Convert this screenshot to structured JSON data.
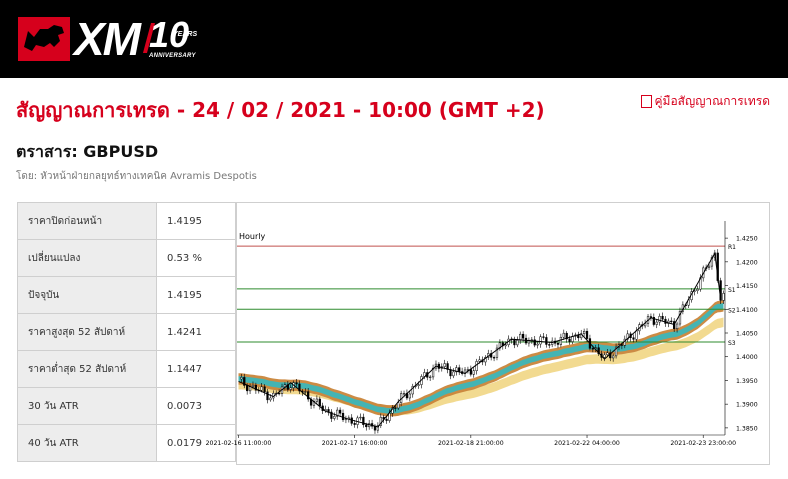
{
  "brand": {
    "logo_text": "XM",
    "anniversary_number": "10",
    "anniversary_years": "YEARS",
    "anniversary_label": "ANNIVERSARY"
  },
  "page_title": "สัญญาณการเทรด - 24 / 02 / 2021 - 10:00 (GMT +2)",
  "guide_link": "คู่มือสัญญาณการเทรด",
  "instrument": "ตราสาร: GBPUSD",
  "author": "โดย: หัวหน้าฝ่ายกลยุทธ์ทางเทคนิค Avramis Despotis",
  "table": [
    {
      "label": "ราคาปิดก่อนหน้า",
      "value": "1.4195"
    },
    {
      "label": "เปลี่ยนแปลง",
      "value": "0.53 %"
    },
    {
      "label": "ปัจจุบัน",
      "value": "1.4195"
    },
    {
      "label": "ราคาสูงสุด 52 สัปดาห์",
      "value": "1.4241"
    },
    {
      "label": "ราคาต่ำสุด 52 สัปดาห์",
      "value": "1.1447"
    },
    {
      "label": "30 วัน ATR",
      "value": "0.0073"
    },
    {
      "label": "40 วัน ATR",
      "value": "0.0179"
    }
  ],
  "chart_data": {
    "type": "line",
    "title": "Hourly",
    "x_tick_labels": [
      "2021-02-16 11:00:00",
      "2021-02-17 16:00:00",
      "2021-02-18 21:00:00",
      "2021-02-22 04:00:00",
      "2021-02-23 23:00:00"
    ],
    "y_tick_labels": [
      "1.4250",
      "1.4200",
      "1.4150",
      "1.4100",
      "1.4050",
      "1.4000",
      "1.3950",
      "1.3900",
      "1.3850"
    ],
    "ylim": [
      1.3835,
      1.4265
    ],
    "levels": [
      {
        "name": "R1",
        "value": 1.4233,
        "color": "#c0504d"
      },
      {
        "name": "S1",
        "value": 1.4143,
        "color": "#2e8b2e"
      },
      {
        "name": "S2",
        "value": 1.41,
        "color": "#2e8b2e"
      },
      {
        "name": "S3",
        "value": 1.4031,
        "color": "#2e8b2e"
      }
    ],
    "zigzag": [
      {
        "i": 0,
        "y": 1.3948
      },
      {
        "i": 12,
        "y": 1.3916
      },
      {
        "i": 18,
        "y": 1.3945
      },
      {
        "i": 30,
        "y": 1.3885
      },
      {
        "i": 38,
        "y": 1.3868
      },
      {
        "i": 48,
        "y": 1.3852
      },
      {
        "i": 55,
        "y": 1.3905
      },
      {
        "i": 68,
        "y": 1.398
      },
      {
        "i": 78,
        "y": 1.3965
      },
      {
        "i": 94,
        "y": 1.4037
      },
      {
        "i": 108,
        "y": 1.403
      },
      {
        "i": 118,
        "y": 1.4048
      },
      {
        "i": 126,
        "y": 1.3995
      },
      {
        "i": 142,
        "y": 1.4082
      },
      {
        "i": 150,
        "y": 1.4068
      },
      {
        "i": 164,
        "y": 1.4218
      },
      {
        "i": 166,
        "y": 1.4122
      }
    ],
    "bar_count": 168,
    "colors": {
      "orange_band": "#c9853a",
      "teal_band": "#3cb6b9",
      "yellow_band": "#f1d88a",
      "zigzag": "#000000",
      "bull_candle": "#ffffff",
      "bear_candle": "#000000"
    }
  }
}
